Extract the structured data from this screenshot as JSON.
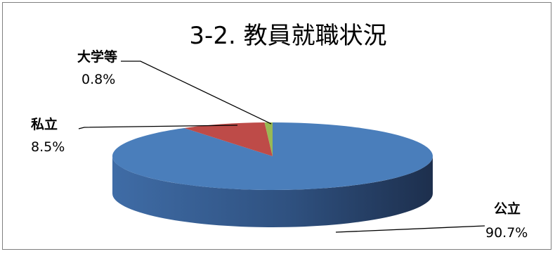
{
  "chart_data": {
    "type": "pie",
    "style": "3d",
    "title": "3-2. 教員就職状況",
    "slices": [
      {
        "name": "公立",
        "value": 90.7,
        "label": "90.7%",
        "color": "#4a7ebb"
      },
      {
        "name": "私立",
        "value": 8.5,
        "label": "8.5%",
        "color": "#be4b48"
      },
      {
        "name": "大学等",
        "value": 0.8,
        "label": "0.8%",
        "color": "#98b954"
      }
    ]
  }
}
